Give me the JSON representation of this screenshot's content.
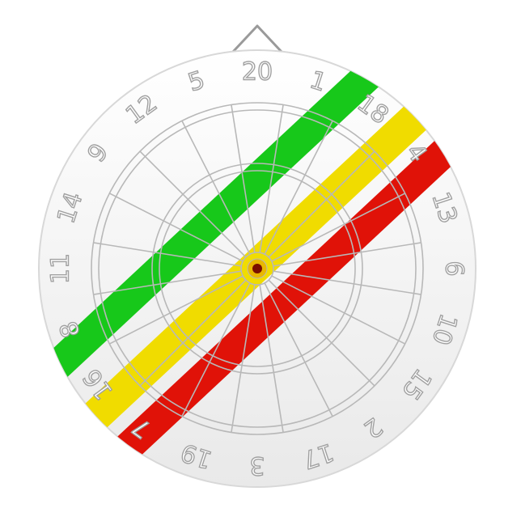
{
  "dartboard": {
    "numbers": [
      "20",
      "1",
      "18",
      "4",
      "13",
      "6",
      "10",
      "15",
      "2",
      "17",
      "3",
      "19",
      "7",
      "16",
      "8",
      "11",
      "14",
      "9",
      "12",
      "5"
    ],
    "colors": {
      "stripe_green": "#17c81a",
      "stripe_yellow": "#f0dc00",
      "stripe_red": "#e01208",
      "board_light": "#ffffff",
      "board_shade": "#ececec",
      "wire": "#b8b8b8",
      "bullseye": "#7a0e00",
      "bull_ring": "#e8b800"
    }
  }
}
